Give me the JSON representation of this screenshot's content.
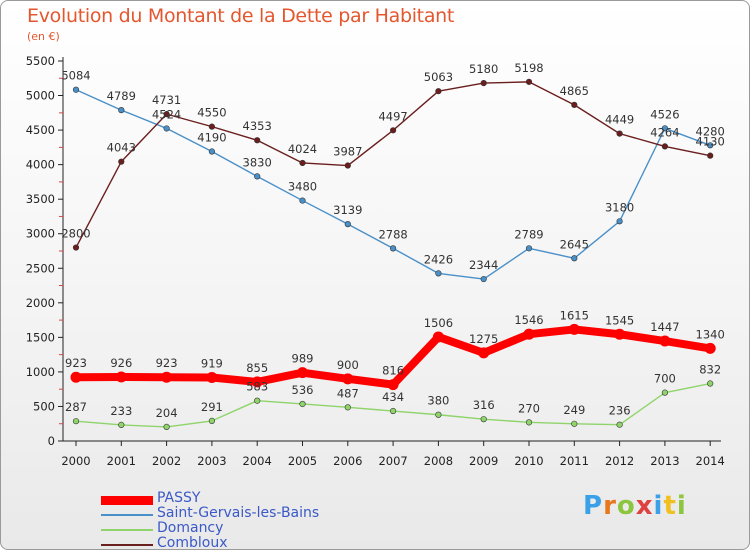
{
  "title": "Evolution du Montant de la Dette par Habitant",
  "subtitle": "(en €)",
  "logo_text": "Proxiti",
  "chart_data": {
    "type": "line",
    "title": "Evolution du Montant de la Dette par Habitant",
    "subtitle": "(en €)",
    "x": [
      "2000",
      "2001",
      "2002",
      "2003",
      "2004",
      "2005",
      "2006",
      "2007",
      "2008",
      "2009",
      "2010",
      "2011",
      "2012",
      "2013",
      "2014"
    ],
    "ylim": [
      0,
      5500
    ],
    "yticks": [
      0,
      500,
      1000,
      1500,
      2000,
      2500,
      3000,
      3500,
      4000,
      4500,
      5000,
      5500
    ],
    "grid": false,
    "legend_position": "bottom-left",
    "series": [
      {
        "name": "PASSY",
        "color": "#ff0000",
        "values": [
          923,
          926,
          923,
          919,
          855,
          989,
          900,
          816,
          1506,
          1275,
          1546,
          1615,
          1545,
          1447,
          1340
        ]
      },
      {
        "name": "Saint-Gervais-les-Bains",
        "color": "#4a90c8",
        "values": [
          5084,
          4789,
          4524,
          4190,
          3830,
          3480,
          3139,
          2788,
          2426,
          2344,
          2789,
          2645,
          3180,
          4526,
          4280
        ]
      },
      {
        "name": "Domancy",
        "color": "#8fd46a",
        "values": [
          287,
          233,
          204,
          291,
          583,
          536,
          487,
          434,
          380,
          316,
          270,
          249,
          236,
          700,
          832
        ]
      },
      {
        "name": "Combloux",
        "color": "#6b1e1e",
        "values": [
          2800,
          4043,
          4731,
          4550,
          4353,
          4024,
          3987,
          4497,
          5063,
          5180,
          5198,
          4865,
          4449,
          4264,
          4130
        ]
      }
    ]
  }
}
